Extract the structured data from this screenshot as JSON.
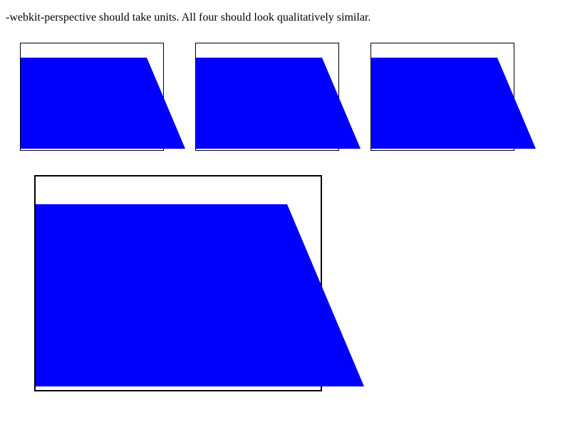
{
  "caption": "-webkit-perspective should take units. All four should look qualitatively similar.",
  "colors": {
    "plane": "#0000ff",
    "border": "#000000",
    "background": "#ffffff"
  },
  "boxes": [
    {
      "name": "perspective-box-1"
    },
    {
      "name": "perspective-box-2"
    },
    {
      "name": "perspective-box-3"
    },
    {
      "name": "perspective-box-4"
    }
  ]
}
